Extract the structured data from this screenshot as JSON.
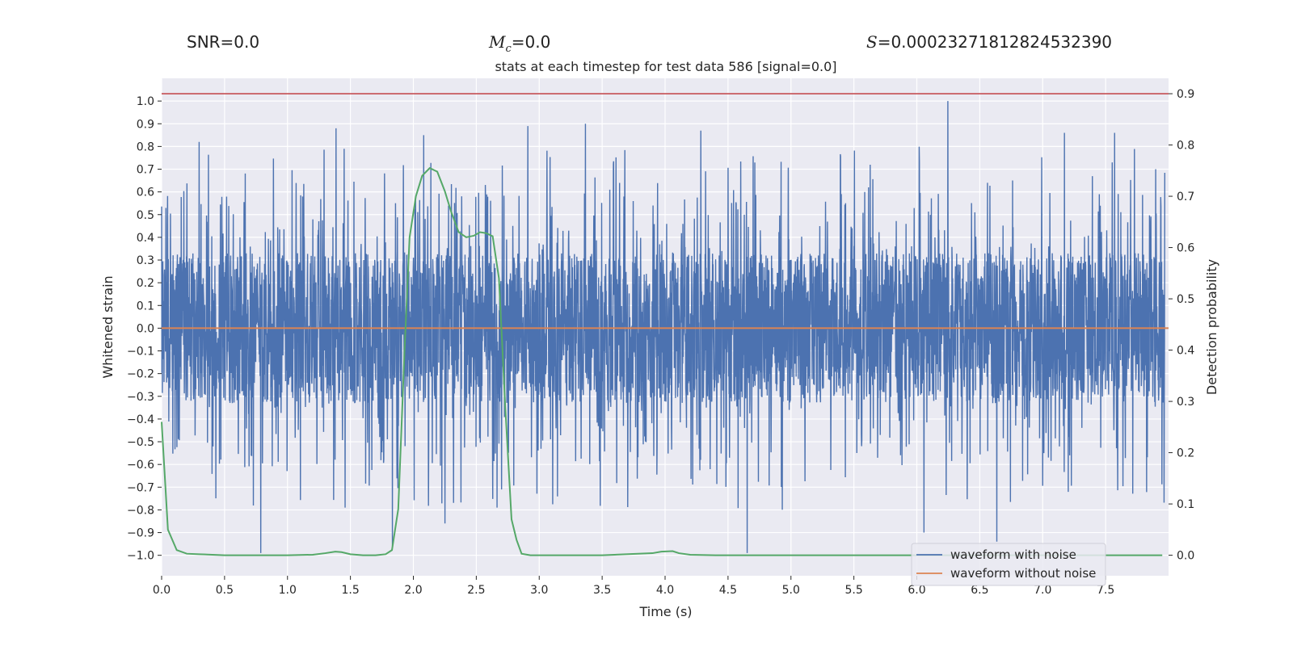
{
  "header": {
    "snr": "SNR=0.0",
    "mc_symbol": "M",
    "mc_sub": "c",
    "mc_value": "=0.0",
    "s_symbol": "S",
    "s_value": "=0.00023271812824532390"
  },
  "colors": {
    "background": "#eaeaf2",
    "grid": "#ffffff",
    "noise": "#4c72b0",
    "clean": "#dd8452",
    "probability": "#55a868",
    "threshold": "#c44e52"
  },
  "chart_data": {
    "type": "line",
    "title": "stats at each timestep for test data 586 [signal=0.0]",
    "xlabel": "Time (s)",
    "ylabel": "Whitened strain",
    "y2label": "Detection probability",
    "xlim": [
      0.0,
      8.0
    ],
    "ylim": [
      -1.09,
      1.1
    ],
    "y2lim": [
      -0.04,
      0.93
    ],
    "xticks": [
      0.0,
      0.5,
      1.0,
      1.5,
      2.0,
      2.5,
      3.0,
      3.5,
      4.0,
      4.5,
      5.0,
      5.5,
      6.0,
      6.5,
      7.0,
      7.5
    ],
    "xtick_labels": [
      "0.0",
      "0.5",
      "1.0",
      "1.5",
      "2.0",
      "2.5",
      "3.0",
      "3.5",
      "4.0",
      "4.5",
      "5.0",
      "5.5",
      "6.0",
      "6.5",
      "7.0",
      "7.5"
    ],
    "yticks": [
      1.0,
      0.9,
      0.8,
      0.7,
      0.6,
      0.5,
      0.4,
      0.3,
      0.2,
      0.1,
      0.0,
      -0.1,
      -0.2,
      -0.3,
      -0.4,
      -0.5,
      -0.6,
      -0.7,
      -0.8,
      -0.9,
      -1.0
    ],
    "ytick_labels": [
      "1.0",
      "0.9",
      "0.8",
      "0.7",
      "0.6",
      "0.5",
      "0.4",
      "0.3",
      "0.2",
      "0.1",
      "0.0",
      "−0.1",
      "−0.2",
      "−0.3",
      "−0.4",
      "−0.5",
      "−0.6",
      "−0.7",
      "−0.8",
      "−0.9",
      "−1.0"
    ],
    "y2ticks": [
      0.9,
      0.8,
      0.7,
      0.6,
      0.5,
      0.4,
      0.3,
      0.2,
      0.1,
      0.0
    ],
    "y2tick_labels": [
      "0.9",
      "0.8",
      "0.7",
      "0.6",
      "0.5",
      "0.4",
      "0.3",
      "0.2",
      "0.1",
      "0.0"
    ],
    "series": [
      {
        "name": "waveform with noise",
        "axis": "left",
        "description": "dense whitened noise, approx. range -1.0 to 1.0",
        "amplitude_bulk": 0.33,
        "max_value": 1.0,
        "min_value": -0.99,
        "peaks_positive": [
          [
            0.3,
            0.82
          ],
          [
            1.39,
            0.88
          ],
          [
            2.09,
            0.85
          ],
          [
            2.92,
            0.89
          ],
          [
            3.38,
            0.9
          ],
          [
            6.27,
            1.0
          ],
          [
            7.2,
            0.86
          ],
          [
            7.6,
            0.86
          ],
          [
            4.3,
            0.87
          ]
        ],
        "peaks_negative": [
          [
            0.79,
            -0.99
          ],
          [
            1.84,
            -0.96
          ],
          [
            2.26,
            -0.86
          ],
          [
            4.67,
            -0.99
          ],
          [
            6.66,
            -0.94
          ],
          [
            6.08,
            -0.9
          ]
        ]
      },
      {
        "name": "waveform without noise",
        "axis": "left",
        "x": [
          0.0,
          8.0
        ],
        "values": [
          0.0,
          0.0
        ]
      },
      {
        "name": "Detection probability",
        "axis": "right",
        "x": [
          0.0,
          0.05,
          0.12,
          0.2,
          0.3,
          0.5,
          0.8,
          1.0,
          1.2,
          1.3,
          1.38,
          1.43,
          1.5,
          1.6,
          1.7,
          1.78,
          1.83,
          1.88,
          1.93,
          1.97,
          2.02,
          2.07,
          2.13,
          2.19,
          2.25,
          2.3,
          2.36,
          2.42,
          2.48,
          2.53,
          2.58,
          2.63,
          2.68,
          2.73,
          2.78,
          2.82,
          2.86,
          2.93,
          3.05,
          3.5,
          3.9,
          3.97,
          4.06,
          4.11,
          4.2,
          4.4,
          4.8,
          5.5,
          6.0,
          6.5,
          7.0,
          7.5,
          7.95
        ],
        "values": [
          0.26,
          0.05,
          0.01,
          0.003,
          0.002,
          0.0,
          0.0,
          0.0,
          0.001,
          0.004,
          0.007,
          0.006,
          0.002,
          0.0,
          0.0,
          0.002,
          0.01,
          0.09,
          0.4,
          0.62,
          0.7,
          0.74,
          0.755,
          0.748,
          0.71,
          0.67,
          0.63,
          0.62,
          0.623,
          0.63,
          0.628,
          0.622,
          0.54,
          0.29,
          0.07,
          0.03,
          0.003,
          0.0,
          0.0,
          0.0,
          0.004,
          0.007,
          0.008,
          0.004,
          0.001,
          0.0,
          0.0,
          0.0,
          0.0,
          0.0,
          0.0,
          0.0,
          0.0
        ]
      },
      {
        "name": "threshold",
        "axis": "right",
        "x": [
          0.0,
          8.0
        ],
        "values": [
          0.9,
          0.9
        ]
      }
    ],
    "legend": {
      "placement": "lower-right",
      "entries": [
        "waveform with noise",
        "waveform without noise"
      ]
    },
    "grid": true
  }
}
